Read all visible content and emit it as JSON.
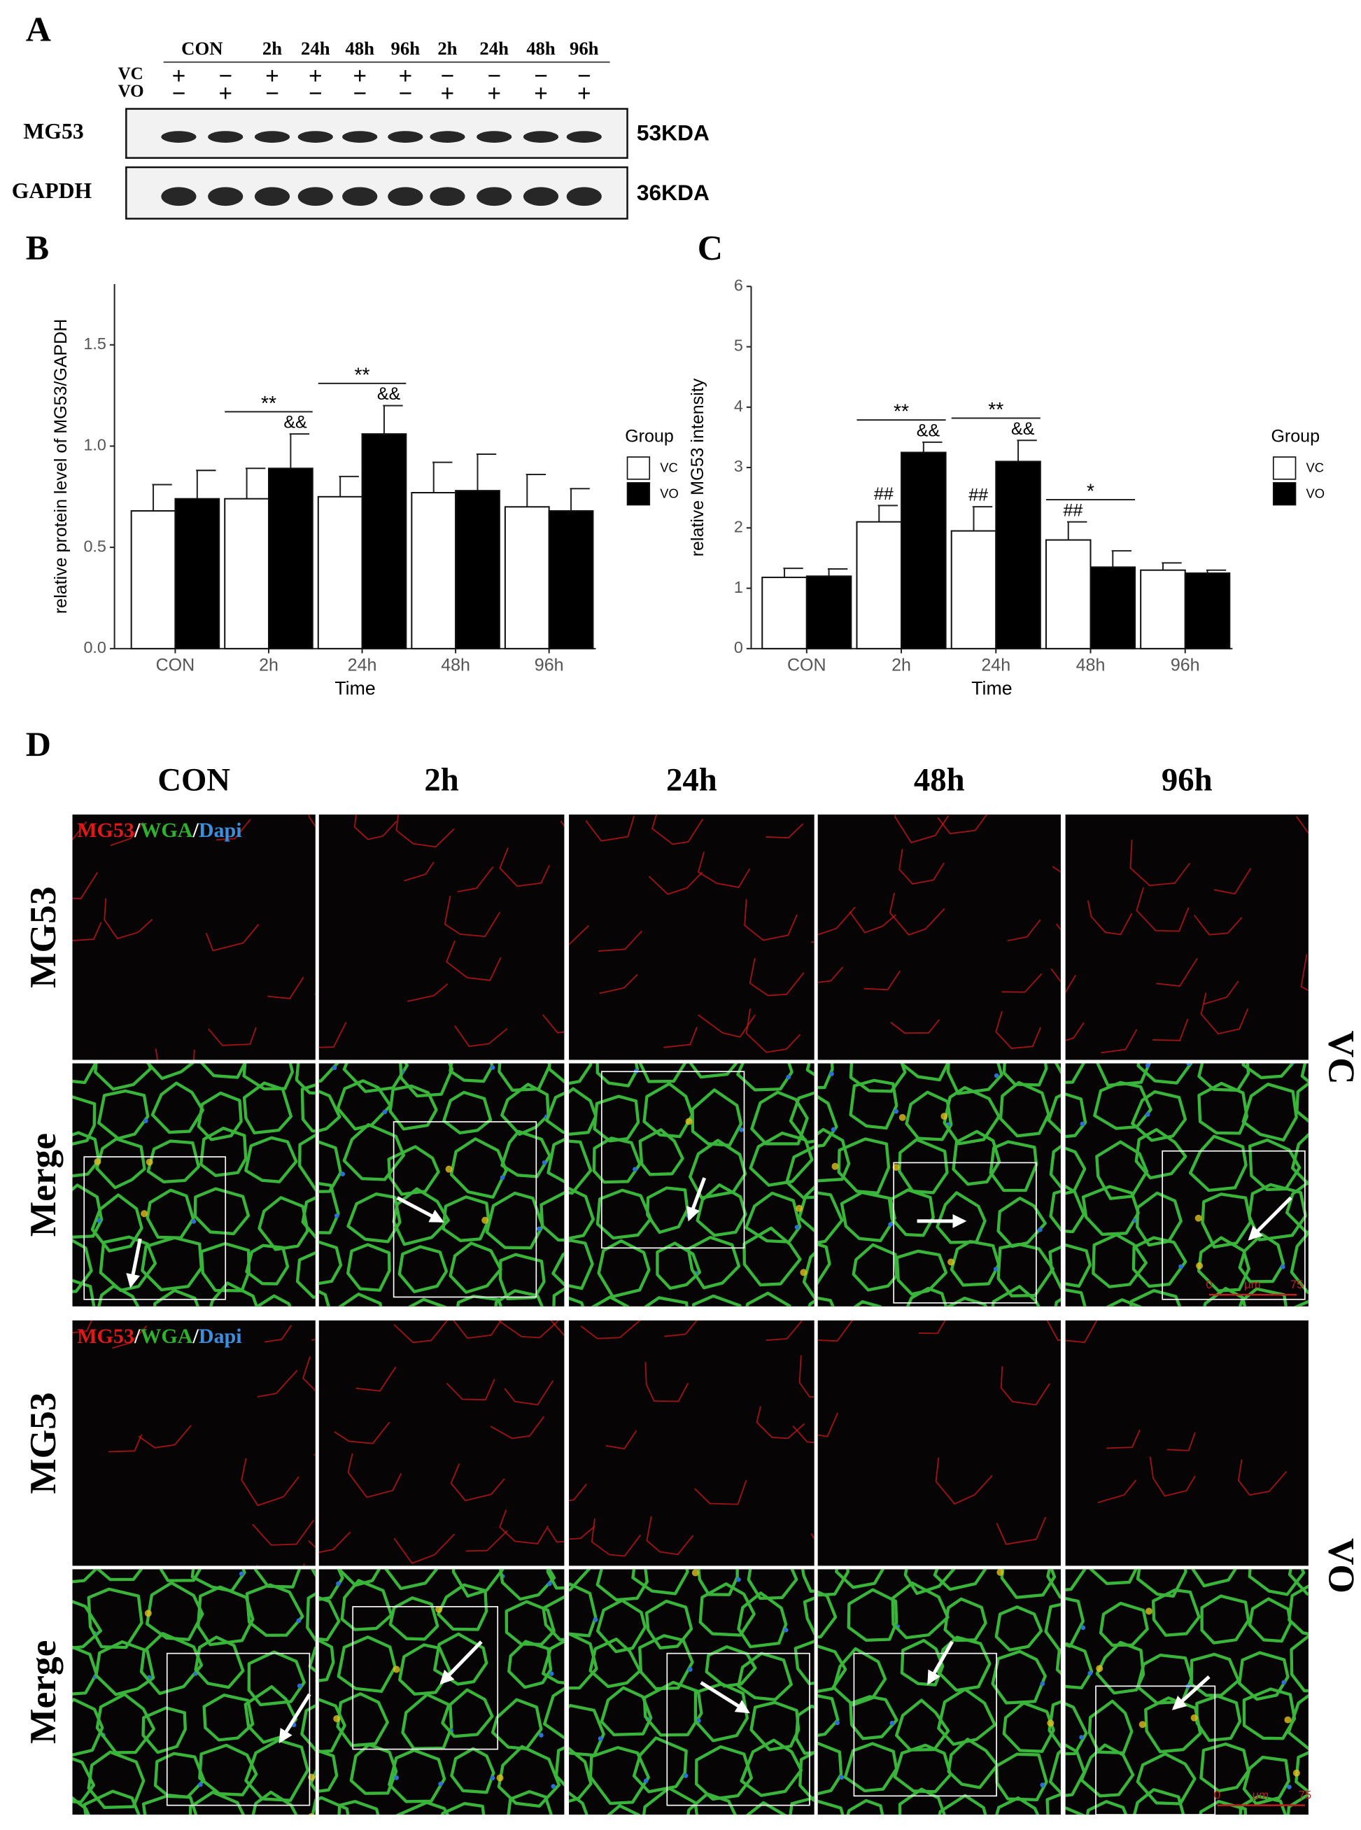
{
  "panel_a": {
    "label": "A",
    "times": [
      "CON",
      "2h",
      "24h",
      "48h",
      "96h",
      "2h",
      "24h",
      "48h",
      "96h"
    ],
    "rows": [
      {
        "name": "VC",
        "signs": [
          "+",
          "−",
          "+",
          "+",
          "+",
          "+",
          "−",
          "−",
          "−",
          "−"
        ]
      },
      {
        "name": "VO",
        "signs": [
          "−",
          "+",
          "−",
          "−",
          "−",
          "−",
          "+",
          "+",
          "+",
          "+"
        ]
      }
    ],
    "blots": [
      {
        "name": "MG53",
        "size": "53KDA"
      },
      {
        "name": "GAPDH",
        "size": "36KDA"
      }
    ]
  },
  "chart_data": [
    {
      "type": "bar",
      "panel": "B",
      "ylabel": "relative protein level of MG53/GAPDH",
      "xlabel": "Time",
      "categories": [
        "CON",
        "2h",
        "24h",
        "48h",
        "96h"
      ],
      "series": [
        {
          "name": "VC",
          "color": "#ffffff",
          "values": [
            0.68,
            0.74,
            0.75,
            0.77,
            0.7
          ],
          "errors": [
            0.13,
            0.15,
            0.1,
            0.15,
            0.16
          ]
        },
        {
          "name": "VO",
          "color": "#000000",
          "values": [
            0.74,
            0.89,
            1.06,
            0.78,
            0.68
          ],
          "errors": [
            0.14,
            0.17,
            0.14,
            0.18,
            0.11
          ]
        }
      ],
      "ylim": [
        0,
        1.8
      ],
      "yticks": [
        {
          "value": 0,
          "label": "0.0"
        },
        0.5,
        {
          "value": 1,
          "label": "1.0"
        },
        1.5
      ],
      "legend_title": "Group",
      "annotations": [
        {
          "text": "**",
          "category": "2h"
        },
        {
          "text": "&&",
          "category": "2h",
          "series": "VO"
        },
        {
          "text": "**",
          "category": "24h"
        },
        {
          "text": "&&",
          "category": "24h",
          "series": "VO"
        }
      ]
    },
    {
      "type": "bar",
      "panel": "C",
      "ylabel": "relative MG53 intensity",
      "xlabel": "Time",
      "categories": [
        "CON",
        "2h",
        "24h",
        "48h",
        "96h"
      ],
      "series": [
        {
          "name": "VC",
          "color": "#ffffff",
          "values": [
            1.18,
            2.1,
            1.95,
            1.8,
            1.3
          ],
          "errors": [
            0.15,
            0.27,
            0.4,
            0.3,
            0.12
          ]
        },
        {
          "name": "VO",
          "color": "#000000",
          "values": [
            1.2,
            3.25,
            3.1,
            1.35,
            1.25
          ],
          "errors": [
            0.12,
            0.17,
            0.35,
            0.27,
            0.05
          ]
        }
      ],
      "ylim": [
        0,
        6
      ],
      "yticks": [
        0,
        1,
        2,
        3,
        4,
        5,
        6
      ],
      "legend_title": "Group",
      "annotations": [
        {
          "text": "##",
          "category": "2h",
          "series": "VC"
        },
        {
          "text": "**",
          "category": "2h"
        },
        {
          "text": "&&",
          "category": "2h",
          "series": "VO"
        },
        {
          "text": "##",
          "category": "24h",
          "series": "VC"
        },
        {
          "text": "**",
          "category": "24h"
        },
        {
          "text": "&&",
          "category": "24h",
          "series": "VO"
        },
        {
          "text": "##",
          "category": "48h",
          "series": "VC"
        },
        {
          "text": "*",
          "category": "48h"
        }
      ]
    }
  ],
  "panel_d": {
    "label": "D",
    "columns": [
      "CON",
      "2h",
      "24h",
      "48h",
      "96h"
    ],
    "rows": [
      "MG53",
      "Merge",
      "MG53",
      "Merge"
    ],
    "groups": [
      "VC",
      "VO"
    ],
    "stain": [
      "MG53",
      "/",
      "WGA",
      "/",
      "Dapi"
    ],
    "scale": [
      "0",
      "μm",
      "75"
    ]
  }
}
